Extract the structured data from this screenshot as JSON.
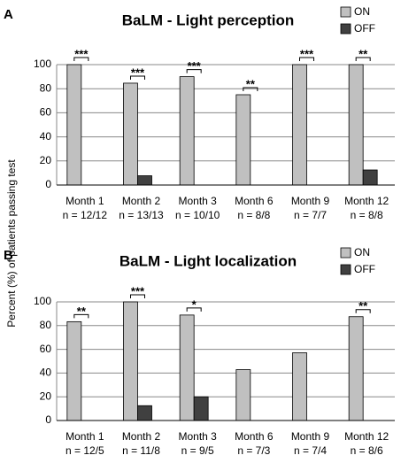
{
  "y_label": "Percent (%) of patients passing test",
  "chart_data": [
    {
      "type": "bar",
      "panel": "A",
      "title": "BaLM - Light perception",
      "categories": [
        "Month 1",
        "Month 2",
        "Month 3",
        "Month 6",
        "Month 9",
        "Month 12"
      ],
      "n_labels": [
        "n = 12/12",
        "n = 13/13",
        "n = 10/10",
        "n = 8/8",
        "n = 7/7",
        "n = 8/8"
      ],
      "series": [
        {
          "name": "ON",
          "color": "#c0c0c0",
          "values": [
            100,
            84.6,
            90,
            75,
            100,
            100
          ]
        },
        {
          "name": "OFF",
          "color": "#404040",
          "values": [
            0,
            7.7,
            0,
            0,
            0,
            12.5
          ]
        }
      ],
      "significance": [
        "***",
        "***",
        "***",
        "**",
        "***",
        "**"
      ],
      "ylim": [
        0,
        100
      ],
      "yticks": [
        0,
        20,
        40,
        60,
        80,
        100
      ],
      "grid": true,
      "legend": "top-right"
    },
    {
      "type": "bar",
      "panel": "B",
      "title": "BaLM - Light localization",
      "categories": [
        "Month 1",
        "Month 2",
        "Month 3",
        "Month 6",
        "Month 9",
        "Month 12"
      ],
      "n_labels": [
        "n = 12/5",
        "n = 11/8",
        "n = 9/5",
        "n = 7/3",
        "n = 7/4",
        "n = 8/6"
      ],
      "series": [
        {
          "name": "ON",
          "color": "#c0c0c0",
          "values": [
            83.3,
            100,
            88.9,
            42.9,
            57.1,
            87.5
          ]
        },
        {
          "name": "OFF",
          "color": "#404040",
          "values": [
            0,
            12.5,
            20,
            0,
            0,
            0
          ]
        }
      ],
      "significance": [
        "**",
        "***",
        "*",
        null,
        null,
        "**"
      ],
      "ylim": [
        0,
        100
      ],
      "yticks": [
        0,
        20,
        40,
        60,
        80,
        100
      ],
      "grid": true,
      "legend": "top-right"
    }
  ]
}
